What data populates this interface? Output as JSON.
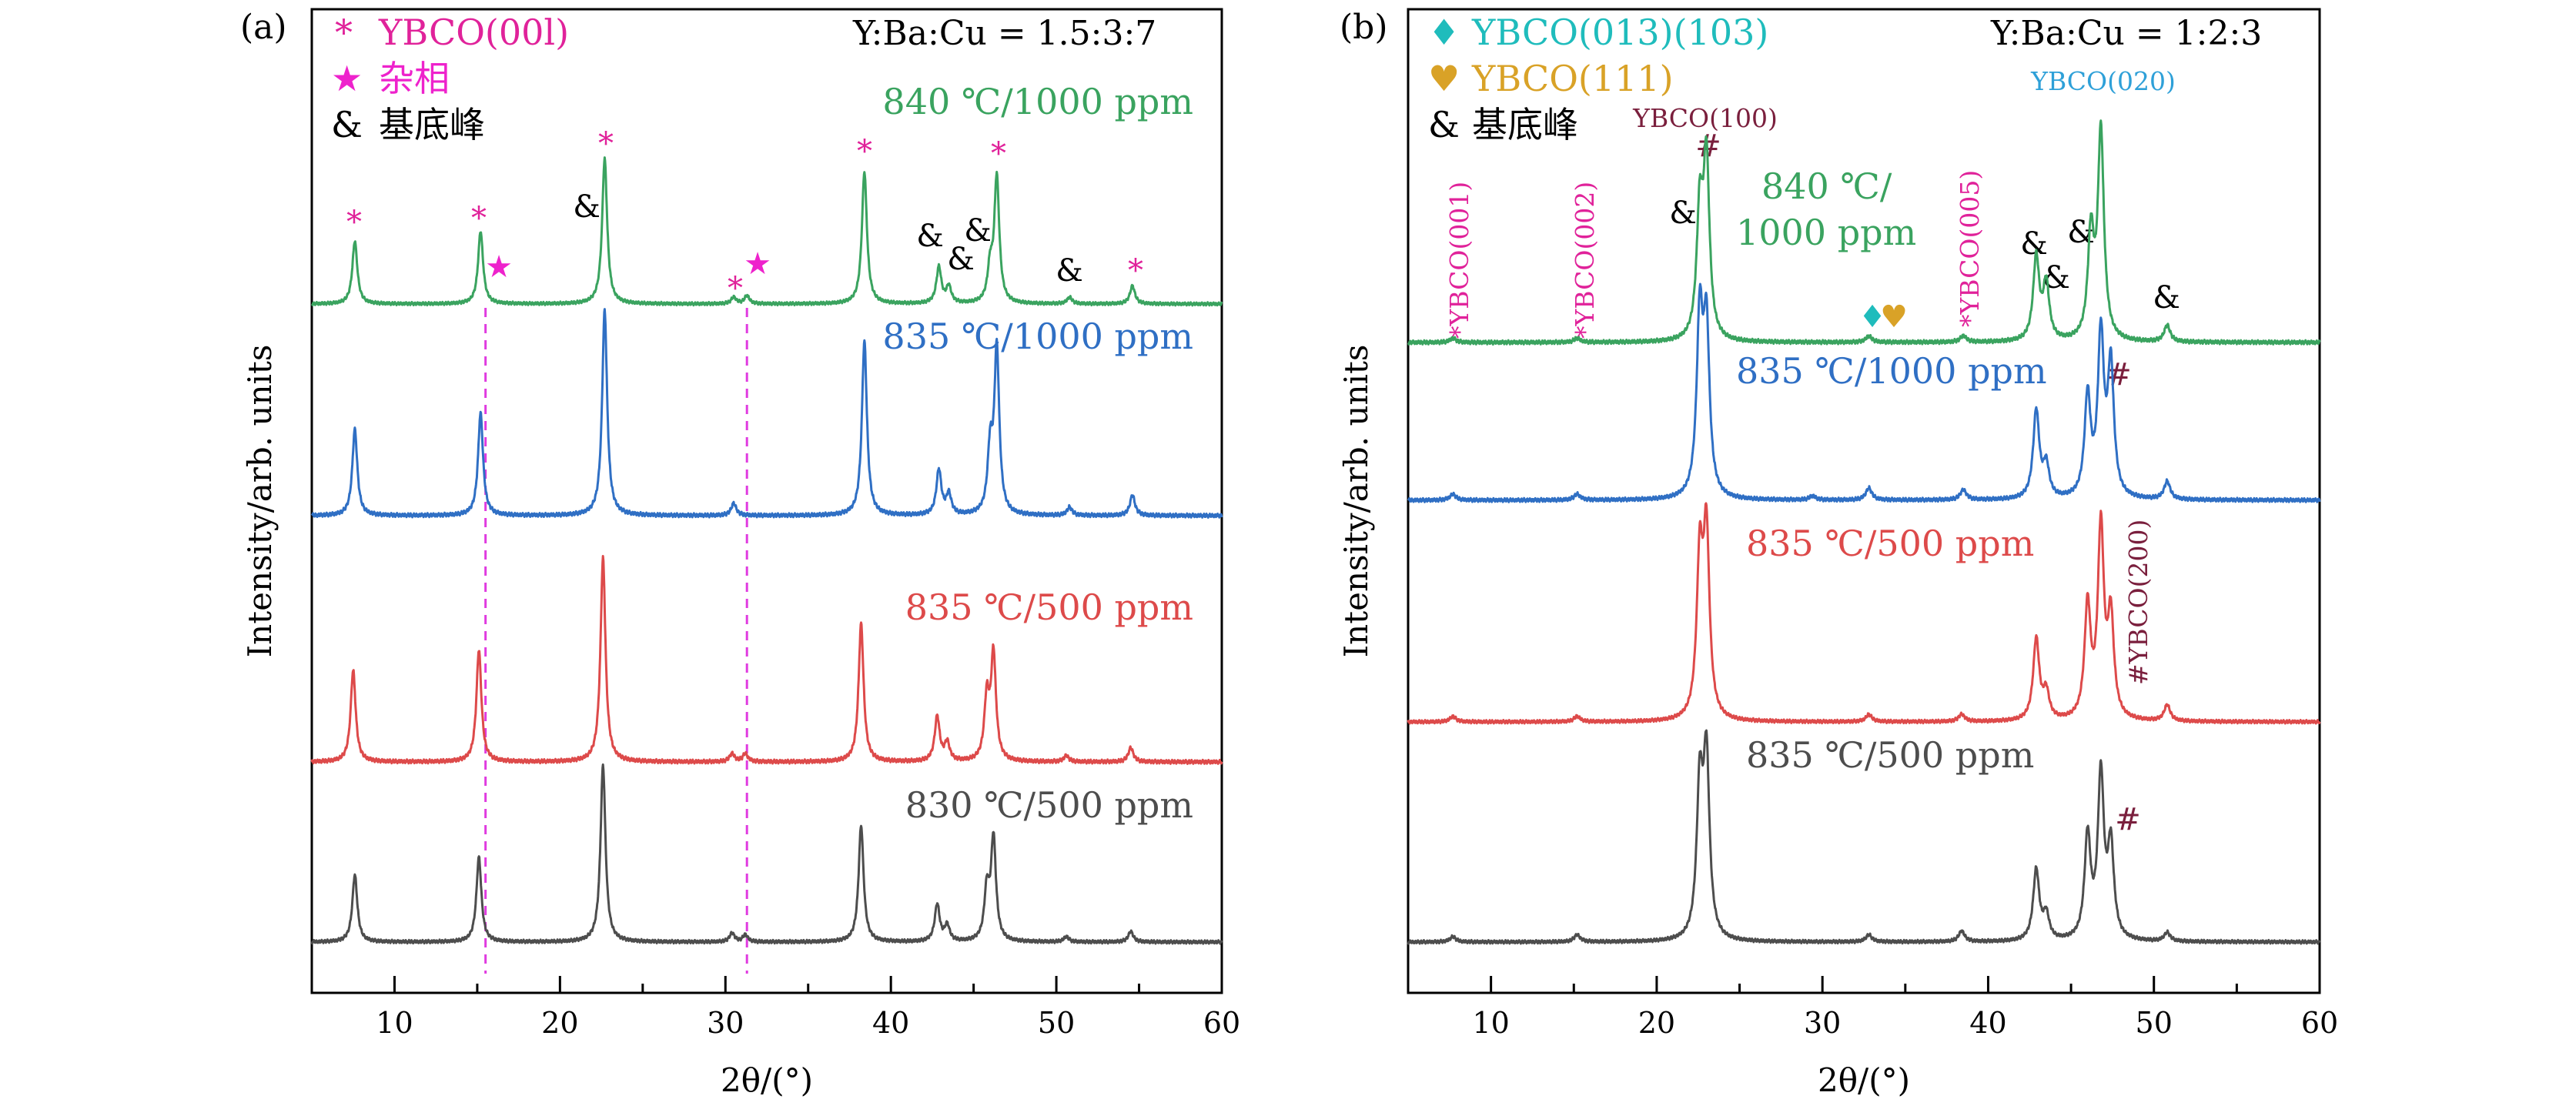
{
  "chart_data": [
    {
      "type": "line",
      "panel_label": "(a)",
      "ratio": "Y:Ba:Cu = 1.5:3:7",
      "xlabel": "2θ/(°)",
      "ylabel": "Intensity/arb. units",
      "xlim": [
        5,
        60
      ],
      "xticks": [
        "10",
        "20",
        "30",
        "40",
        "50",
        "60"
      ],
      "legend": [
        {
          "symbol": "*",
          "label": "YBCO(00l)",
          "color": "#e0229a"
        },
        {
          "symbol": "★",
          "label": "杂相",
          "color": "#ee22cc"
        },
        {
          "symbol": "&",
          "label": "基底峰",
          "color": "#000000"
        }
      ],
      "series": [
        {
          "name": "840 ℃/1000 ppm",
          "color": "#3aa35f",
          "peaks": [
            [
              7.6,
              0.38
            ],
            [
              15.2,
              0.44
            ],
            [
              22.7,
              0.88
            ],
            [
              30.5,
              0.04
            ],
            [
              31.3,
              0.05
            ],
            [
              38.4,
              0.8
            ],
            [
              42.9,
              0.22
            ],
            [
              43.5,
              0.1
            ],
            [
              46.0,
              0.2
            ],
            [
              46.4,
              0.76
            ],
            [
              50.8,
              0.04
            ],
            [
              54.6,
              0.11
            ]
          ]
        },
        {
          "name": "835 ℃/1000 ppm",
          "color": "#2f6fc4",
          "peaks": [
            [
              7.6,
              0.42
            ],
            [
              15.2,
              0.5
            ],
            [
              22.7,
              1.0
            ],
            [
              30.5,
              0.06
            ],
            [
              38.4,
              0.85
            ],
            [
              42.9,
              0.22
            ],
            [
              43.5,
              0.1
            ],
            [
              46.0,
              0.3
            ],
            [
              46.4,
              0.8
            ],
            [
              50.8,
              0.04
            ],
            [
              54.6,
              0.1
            ]
          ]
        },
        {
          "name": "835 ℃/500 ppm",
          "color": "#dd4a4a",
          "peaks": [
            [
              7.5,
              0.45
            ],
            [
              15.1,
              0.55
            ],
            [
              22.6,
              1.0
            ],
            [
              30.4,
              0.04
            ],
            [
              31.2,
              0.04
            ],
            [
              38.2,
              0.68
            ],
            [
              42.8,
              0.22
            ],
            [
              43.4,
              0.09
            ],
            [
              45.8,
              0.3
            ],
            [
              46.2,
              0.52
            ],
            [
              50.6,
              0.03
            ],
            [
              54.5,
              0.07
            ]
          ]
        },
        {
          "name": "830 ℃/500 ppm",
          "color": "#4d4d4d",
          "peaks": [
            [
              7.6,
              0.38
            ],
            [
              15.1,
              0.48
            ],
            [
              22.6,
              1.0
            ],
            [
              30.4,
              0.05
            ],
            [
              31.2,
              0.04
            ],
            [
              38.2,
              0.66
            ],
            [
              42.8,
              0.21
            ],
            [
              43.4,
              0.09
            ],
            [
              45.8,
              0.28
            ],
            [
              46.2,
              0.58
            ],
            [
              50.6,
              0.03
            ],
            [
              54.5,
              0.06
            ]
          ]
        }
      ],
      "annotations": {
        "magenta_star": [
          "*",
          "*",
          "*",
          "*",
          "*",
          "*",
          "*",
          "*"
        ],
        "black_amp": [
          "&",
          "&",
          "&",
          "&",
          "&"
        ],
        "phase_star": [
          "★",
          "★"
        ],
        "dashed_lines_x": [
          15.5,
          31.3
        ]
      }
    },
    {
      "type": "line",
      "panel_label": "(b)",
      "ratio": "Y:Ba:Cu = 1:2:3",
      "xlabel": "2θ/(°)",
      "ylabel": "Intensity/arb. units",
      "xlim": [
        5,
        60
      ],
      "xticks": [
        "10",
        "20",
        "30",
        "40",
        "50",
        "60"
      ],
      "legend": [
        {
          "symbol": "♦",
          "label": "YBCO(013)(103)",
          "color": "#1fbcbc"
        },
        {
          "symbol": "♥",
          "label": "YBCO(111)",
          "color": "#d9a227"
        },
        {
          "symbol": "&",
          "label": "基底峰",
          "color": "#000000"
        }
      ],
      "series": [
        {
          "name": "840 ℃/ 1000 ppm",
          "color": "#3aa35f",
          "peaks": [
            [
              7.7,
              0.02
            ],
            [
              15.2,
              0.02
            ],
            [
              22.6,
              0.6
            ],
            [
              23.0,
              0.85
            ],
            [
              32.8,
              0.03
            ],
            [
              38.5,
              0.03
            ],
            [
              42.9,
              0.4
            ],
            [
              43.5,
              0.27
            ],
            [
              46.2,
              0.5
            ],
            [
              46.8,
              1.0
            ],
            [
              50.8,
              0.08
            ]
          ]
        },
        {
          "name": "835 ℃/1000 ppm",
          "color": "#2f6fc4",
          "peaks": [
            [
              7.7,
              0.03
            ],
            [
              15.2,
              0.03
            ],
            [
              22.6,
              0.88
            ],
            [
              23.0,
              0.82
            ],
            [
              29.4,
              0.02
            ],
            [
              32.8,
              0.06
            ],
            [
              38.5,
              0.05
            ],
            [
              42.9,
              0.44
            ],
            [
              43.5,
              0.16
            ],
            [
              46.0,
              0.5
            ],
            [
              46.8,
              0.8
            ],
            [
              47.4,
              0.65
            ],
            [
              50.8,
              0.09
            ]
          ]
        },
        {
          "name": "835 ℃/500 ppm",
          "color": "#dd4a4a",
          "peaks": [
            [
              7.7,
              0.03
            ],
            [
              15.2,
              0.03
            ],
            [
              22.6,
              0.86
            ],
            [
              23.0,
              1.0
            ],
            [
              32.8,
              0.04
            ],
            [
              38.4,
              0.04
            ],
            [
              42.9,
              0.45
            ],
            [
              43.5,
              0.15
            ],
            [
              46.0,
              0.62
            ],
            [
              46.8,
              1.05
            ],
            [
              47.4,
              0.55
            ],
            [
              50.8,
              0.09
            ]
          ]
        },
        {
          "name": "835 ℃/500 ppm",
          "color": "#4d4d4d",
          "peaks": [
            [
              7.7,
              0.03
            ],
            [
              15.2,
              0.04
            ],
            [
              22.6,
              0.84
            ],
            [
              23.0,
              1.0
            ],
            [
              32.8,
              0.04
            ],
            [
              38.4,
              0.06
            ],
            [
              42.9,
              0.4
            ],
            [
              43.5,
              0.14
            ],
            [
              46.0,
              0.58
            ],
            [
              46.8,
              0.92
            ],
            [
              47.4,
              0.52
            ],
            [
              50.8,
              0.05
            ]
          ]
        }
      ],
      "annotations": {
        "vertical_labels": [
          "*YBCO(001)",
          "*YBCO(002)",
          "*YBCO(005)",
          "#YBCO(200)"
        ],
        "top_labels": [
          "YBCO(100)",
          "YBCO(020)"
        ],
        "hash_marks": [
          "#",
          "#",
          "#",
          "#"
        ],
        "black_amp": [
          "&",
          "&",
          "&",
          "&",
          "&"
        ],
        "diamond": "♦",
        "heart": "♥"
      }
    }
  ]
}
